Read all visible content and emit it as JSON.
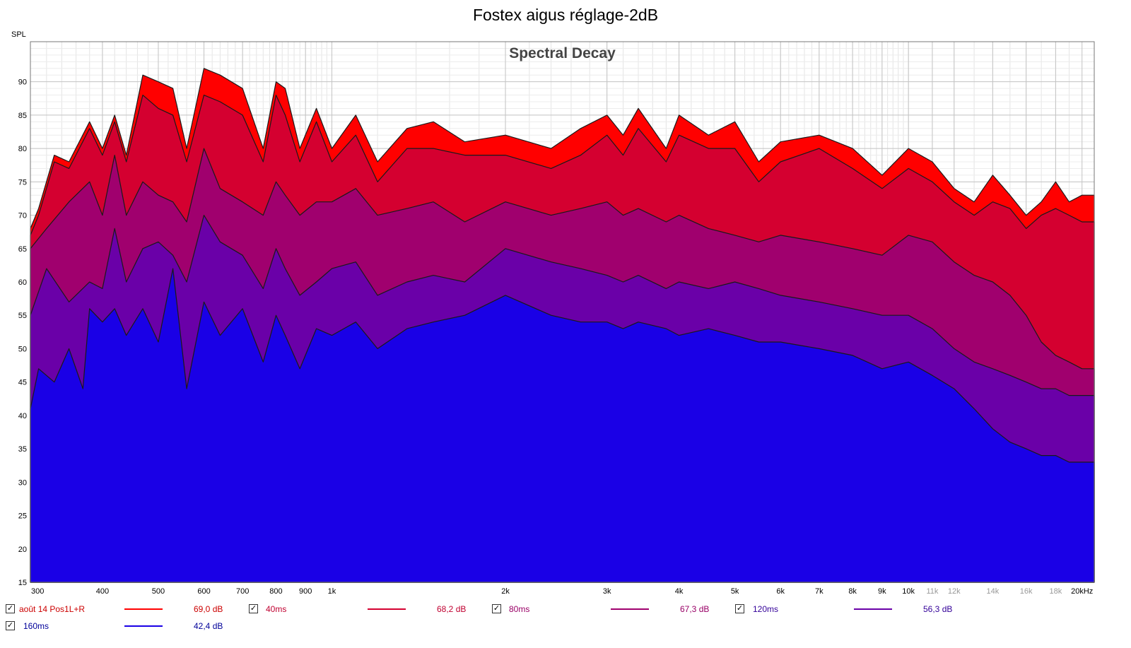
{
  "title": "Fostex aigus réglage-2dB",
  "chart_data": {
    "type": "area",
    "title": "Spectral Decay",
    "ylabel": "SPL",
    "x_scale": "log",
    "xlim": [
      300,
      21000
    ],
    "ylim": [
      15,
      96
    ],
    "grid": true,
    "y_ticks": [
      "15",
      "20",
      "25",
      "30",
      "35",
      "40",
      "45",
      "50",
      "55",
      "60",
      "65",
      "70",
      "75",
      "80",
      "85",
      "90"
    ],
    "x_ticks": [
      {
        "v": 300,
        "label": "300"
      },
      {
        "v": 400,
        "label": "400"
      },
      {
        "v": 500,
        "label": "500"
      },
      {
        "v": 600,
        "label": "600"
      },
      {
        "v": 700,
        "label": "700"
      },
      {
        "v": 800,
        "label": "800"
      },
      {
        "v": 900,
        "label": "900"
      },
      {
        "v": 1000,
        "label": "1k"
      },
      {
        "v": 2000,
        "label": "2k"
      },
      {
        "v": 3000,
        "label": "3k"
      },
      {
        "v": 4000,
        "label": "4k"
      },
      {
        "v": 5000,
        "label": "5k"
      },
      {
        "v": 6000,
        "label": "6k"
      },
      {
        "v": 7000,
        "label": "7k"
      },
      {
        "v": 8000,
        "label": "8k"
      },
      {
        "v": 9000,
        "label": "9k"
      },
      {
        "v": 10000,
        "label": "10k"
      },
      {
        "v": 11000,
        "label": "11k",
        "grey": true
      },
      {
        "v": 12000,
        "label": "12k",
        "grey": true
      },
      {
        "v": 14000,
        "label": "14k",
        "grey": true
      },
      {
        "v": 16000,
        "label": "16k",
        "grey": true
      },
      {
        "v": 18000,
        "label": "18k",
        "grey": true
      },
      {
        "v": 20000,
        "label": "20kHz"
      }
    ],
    "series": [
      {
        "name": "août 14 Pos1L+R",
        "value": "69,0 dB",
        "color": "#ff0000",
        "text_color": "#cc0000",
        "points": [
          [
            300,
            68
          ],
          [
            310,
            71
          ],
          [
            330,
            79
          ],
          [
            350,
            78
          ],
          [
            380,
            84
          ],
          [
            400,
            80
          ],
          [
            420,
            85
          ],
          [
            440,
            79
          ],
          [
            470,
            91
          ],
          [
            500,
            90
          ],
          [
            530,
            89
          ],
          [
            560,
            80
          ],
          [
            600,
            92
          ],
          [
            640,
            91
          ],
          [
            700,
            89
          ],
          [
            760,
            80
          ],
          [
            800,
            90
          ],
          [
            830,
            89
          ],
          [
            880,
            80
          ],
          [
            940,
            86
          ],
          [
            1000,
            80
          ],
          [
            1100,
            85
          ],
          [
            1200,
            78
          ],
          [
            1350,
            83
          ],
          [
            1500,
            84
          ],
          [
            1700,
            81
          ],
          [
            2000,
            82
          ],
          [
            2400,
            80
          ],
          [
            2700,
            83
          ],
          [
            3000,
            85
          ],
          [
            3200,
            82
          ],
          [
            3400,
            86
          ],
          [
            3800,
            80
          ],
          [
            4000,
            85
          ],
          [
            4500,
            82
          ],
          [
            5000,
            84
          ],
          [
            5500,
            78
          ],
          [
            6000,
            81
          ],
          [
            7000,
            82
          ],
          [
            8000,
            80
          ],
          [
            9000,
            76
          ],
          [
            10000,
            80
          ],
          [
            11000,
            78
          ],
          [
            12000,
            74
          ],
          [
            13000,
            72
          ],
          [
            14000,
            76
          ],
          [
            15000,
            73
          ],
          [
            16000,
            70
          ],
          [
            17000,
            72
          ],
          [
            18000,
            75
          ],
          [
            19000,
            72
          ],
          [
            20000,
            73
          ]
        ]
      },
      {
        "name": "40ms",
        "value": "68,2 dB",
        "color": "#d40030",
        "text_color": "#c00030",
        "points": [
          [
            300,
            67
          ],
          [
            310,
            70
          ],
          [
            330,
            78
          ],
          [
            350,
            77
          ],
          [
            380,
            83
          ],
          [
            400,
            79
          ],
          [
            420,
            84
          ],
          [
            440,
            78
          ],
          [
            470,
            88
          ],
          [
            500,
            86
          ],
          [
            530,
            85
          ],
          [
            560,
            78
          ],
          [
            600,
            88
          ],
          [
            640,
            87
          ],
          [
            700,
            85
          ],
          [
            760,
            78
          ],
          [
            800,
            88
          ],
          [
            830,
            85
          ],
          [
            880,
            78
          ],
          [
            940,
            84
          ],
          [
            1000,
            78
          ],
          [
            1100,
            82
          ],
          [
            1200,
            75
          ],
          [
            1350,
            80
          ],
          [
            1500,
            80
          ],
          [
            1700,
            79
          ],
          [
            2000,
            79
          ],
          [
            2400,
            77
          ],
          [
            2700,
            79
          ],
          [
            3000,
            82
          ],
          [
            3200,
            79
          ],
          [
            3400,
            83
          ],
          [
            3800,
            78
          ],
          [
            4000,
            82
          ],
          [
            4500,
            80
          ],
          [
            5000,
            80
          ],
          [
            5500,
            75
          ],
          [
            6000,
            78
          ],
          [
            7000,
            80
          ],
          [
            8000,
            77
          ],
          [
            9000,
            74
          ],
          [
            10000,
            77
          ],
          [
            11000,
            75
          ],
          [
            12000,
            72
          ],
          [
            13000,
            70
          ],
          [
            14000,
            72
          ],
          [
            15000,
            71
          ],
          [
            16000,
            68
          ],
          [
            17000,
            70
          ],
          [
            18000,
            71
          ],
          [
            19000,
            70
          ],
          [
            20000,
            69
          ]
        ]
      },
      {
        "name": "80ms",
        "value": "67,3 dB",
        "color": "#a0006e",
        "text_color": "#990066",
        "points": [
          [
            300,
            65
          ],
          [
            320,
            68
          ],
          [
            350,
            72
          ],
          [
            380,
            75
          ],
          [
            400,
            70
          ],
          [
            420,
            79
          ],
          [
            440,
            70
          ],
          [
            470,
            75
          ],
          [
            500,
            73
          ],
          [
            530,
            72
          ],
          [
            560,
            69
          ],
          [
            600,
            80
          ],
          [
            640,
            74
          ],
          [
            700,
            72
          ],
          [
            760,
            70
          ],
          [
            800,
            75
          ],
          [
            830,
            73
          ],
          [
            880,
            70
          ],
          [
            940,
            72
          ],
          [
            1000,
            72
          ],
          [
            1100,
            74
          ],
          [
            1200,
            70
          ],
          [
            1350,
            71
          ],
          [
            1500,
            72
          ],
          [
            1700,
            69
          ],
          [
            2000,
            72
          ],
          [
            2400,
            70
          ],
          [
            2700,
            71
          ],
          [
            3000,
            72
          ],
          [
            3200,
            70
          ],
          [
            3400,
            71
          ],
          [
            3800,
            69
          ],
          [
            4000,
            70
          ],
          [
            4500,
            68
          ],
          [
            5000,
            67
          ],
          [
            5500,
            66
          ],
          [
            6000,
            67
          ],
          [
            7000,
            66
          ],
          [
            8000,
            65
          ],
          [
            9000,
            64
          ],
          [
            10000,
            67
          ],
          [
            11000,
            66
          ],
          [
            12000,
            63
          ],
          [
            13000,
            61
          ],
          [
            14000,
            60
          ],
          [
            15000,
            58
          ],
          [
            16000,
            55
          ],
          [
            17000,
            51
          ],
          [
            18000,
            49
          ],
          [
            19000,
            48
          ],
          [
            20000,
            47
          ]
        ]
      },
      {
        "name": "120ms",
        "value": "56,3 dB",
        "color": "#6a00a8",
        "text_color": "#330099",
        "points": [
          [
            300,
            55
          ],
          [
            320,
            62
          ],
          [
            350,
            57
          ],
          [
            380,
            60
          ],
          [
            400,
            59
          ],
          [
            420,
            68
          ],
          [
            440,
            60
          ],
          [
            470,
            65
          ],
          [
            500,
            66
          ],
          [
            530,
            64
          ],
          [
            560,
            60
          ],
          [
            600,
            70
          ],
          [
            640,
            66
          ],
          [
            700,
            64
          ],
          [
            760,
            59
          ],
          [
            800,
            65
          ],
          [
            830,
            62
          ],
          [
            880,
            58
          ],
          [
            940,
            60
          ],
          [
            1000,
            62
          ],
          [
            1100,
            63
          ],
          [
            1200,
            58
          ],
          [
            1350,
            60
          ],
          [
            1500,
            61
          ],
          [
            1700,
            60
          ],
          [
            2000,
            65
          ],
          [
            2400,
            63
          ],
          [
            2700,
            62
          ],
          [
            3000,
            61
          ],
          [
            3200,
            60
          ],
          [
            3400,
            61
          ],
          [
            3800,
            59
          ],
          [
            4000,
            60
          ],
          [
            4500,
            59
          ],
          [
            5000,
            60
          ],
          [
            5500,
            59
          ],
          [
            6000,
            58
          ],
          [
            7000,
            57
          ],
          [
            8000,
            56
          ],
          [
            9000,
            55
          ],
          [
            10000,
            55
          ],
          [
            11000,
            53
          ],
          [
            12000,
            50
          ],
          [
            13000,
            48
          ],
          [
            14000,
            47
          ],
          [
            15000,
            46
          ],
          [
            16000,
            45
          ],
          [
            17000,
            44
          ],
          [
            18000,
            44
          ],
          [
            19000,
            43
          ],
          [
            20000,
            43
          ]
        ]
      },
      {
        "name": "160ms",
        "value": "42,4 dB",
        "color": "#1a00e6",
        "text_color": "#000099",
        "points": [
          [
            300,
            41
          ],
          [
            310,
            47
          ],
          [
            330,
            45
          ],
          [
            350,
            50
          ],
          [
            370,
            44
          ],
          [
            380,
            56
          ],
          [
            400,
            54
          ],
          [
            420,
            56
          ],
          [
            440,
            52
          ],
          [
            470,
            56
          ],
          [
            500,
            51
          ],
          [
            530,
            62
          ],
          [
            560,
            44
          ],
          [
            600,
            57
          ],
          [
            640,
            52
          ],
          [
            700,
            56
          ],
          [
            760,
            48
          ],
          [
            800,
            55
          ],
          [
            830,
            52
          ],
          [
            880,
            47
          ],
          [
            940,
            53
          ],
          [
            1000,
            52
          ],
          [
            1100,
            54
          ],
          [
            1200,
            50
          ],
          [
            1350,
            53
          ],
          [
            1500,
            54
          ],
          [
            1700,
            55
          ],
          [
            2000,
            58
          ],
          [
            2400,
            55
          ],
          [
            2700,
            54
          ],
          [
            3000,
            54
          ],
          [
            3200,
            53
          ],
          [
            3400,
            54
          ],
          [
            3800,
            53
          ],
          [
            4000,
            52
          ],
          [
            4500,
            53
          ],
          [
            5000,
            52
          ],
          [
            5500,
            51
          ],
          [
            6000,
            51
          ],
          [
            7000,
            50
          ],
          [
            8000,
            49
          ],
          [
            9000,
            47
          ],
          [
            10000,
            48
          ],
          [
            11000,
            46
          ],
          [
            12000,
            44
          ],
          [
            13000,
            41
          ],
          [
            14000,
            38
          ],
          [
            15000,
            36
          ],
          [
            16000,
            35
          ],
          [
            17000,
            34
          ],
          [
            18000,
            34
          ],
          [
            19000,
            33
          ],
          [
            20000,
            33
          ]
        ]
      }
    ]
  }
}
